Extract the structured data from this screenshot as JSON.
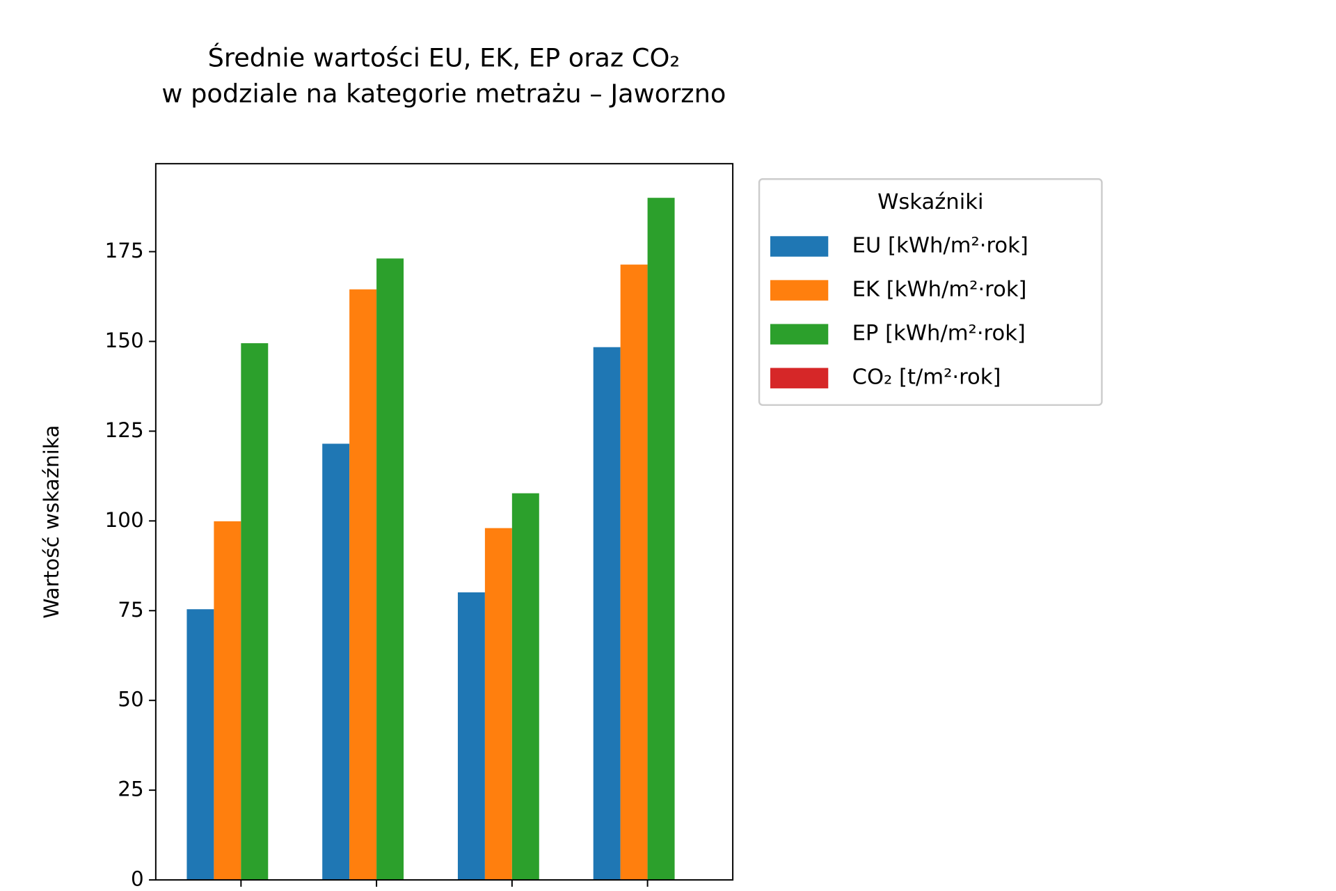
{
  "chart_data": {
    "type": "bar",
    "title": "Średnie wartości EU, EK, EP oraz CO₂\nw podziale na kategorie metrażu – Jaworzno",
    "y_label": "Wartość wskaźnika",
    "legend_title": "Wskaźniki",
    "legend_position": "outside-upper-right",
    "categories": [
      null,
      null,
      null,
      null
    ],
    "series": [
      {
        "name": "EU [kWh/m²·rok]",
        "color": "#1f77b4",
        "values": [
          75.4,
          121.5,
          80.1,
          148.4
        ]
      },
      {
        "name": "EK [kWh/m²·rok]",
        "color": "#ff7f0e",
        "values": [
          99.9,
          164.5,
          98,
          171.4
        ]
      },
      {
        "name": "EP [kWh/m²·rok]",
        "color": "#2ca02c",
        "values": [
          149.5,
          173.1,
          107.7,
          190
        ]
      },
      {
        "name": "CO₂ [t/m²·rok]",
        "color": "#d62728",
        "values": [
          0.05,
          0.05,
          0.05,
          0.05
        ]
      }
    ],
    "ylim": [
      0,
      199.5
    ],
    "yticks": [
      0,
      25,
      50,
      75,
      100,
      125,
      150,
      175
    ],
    "grid": false
  }
}
